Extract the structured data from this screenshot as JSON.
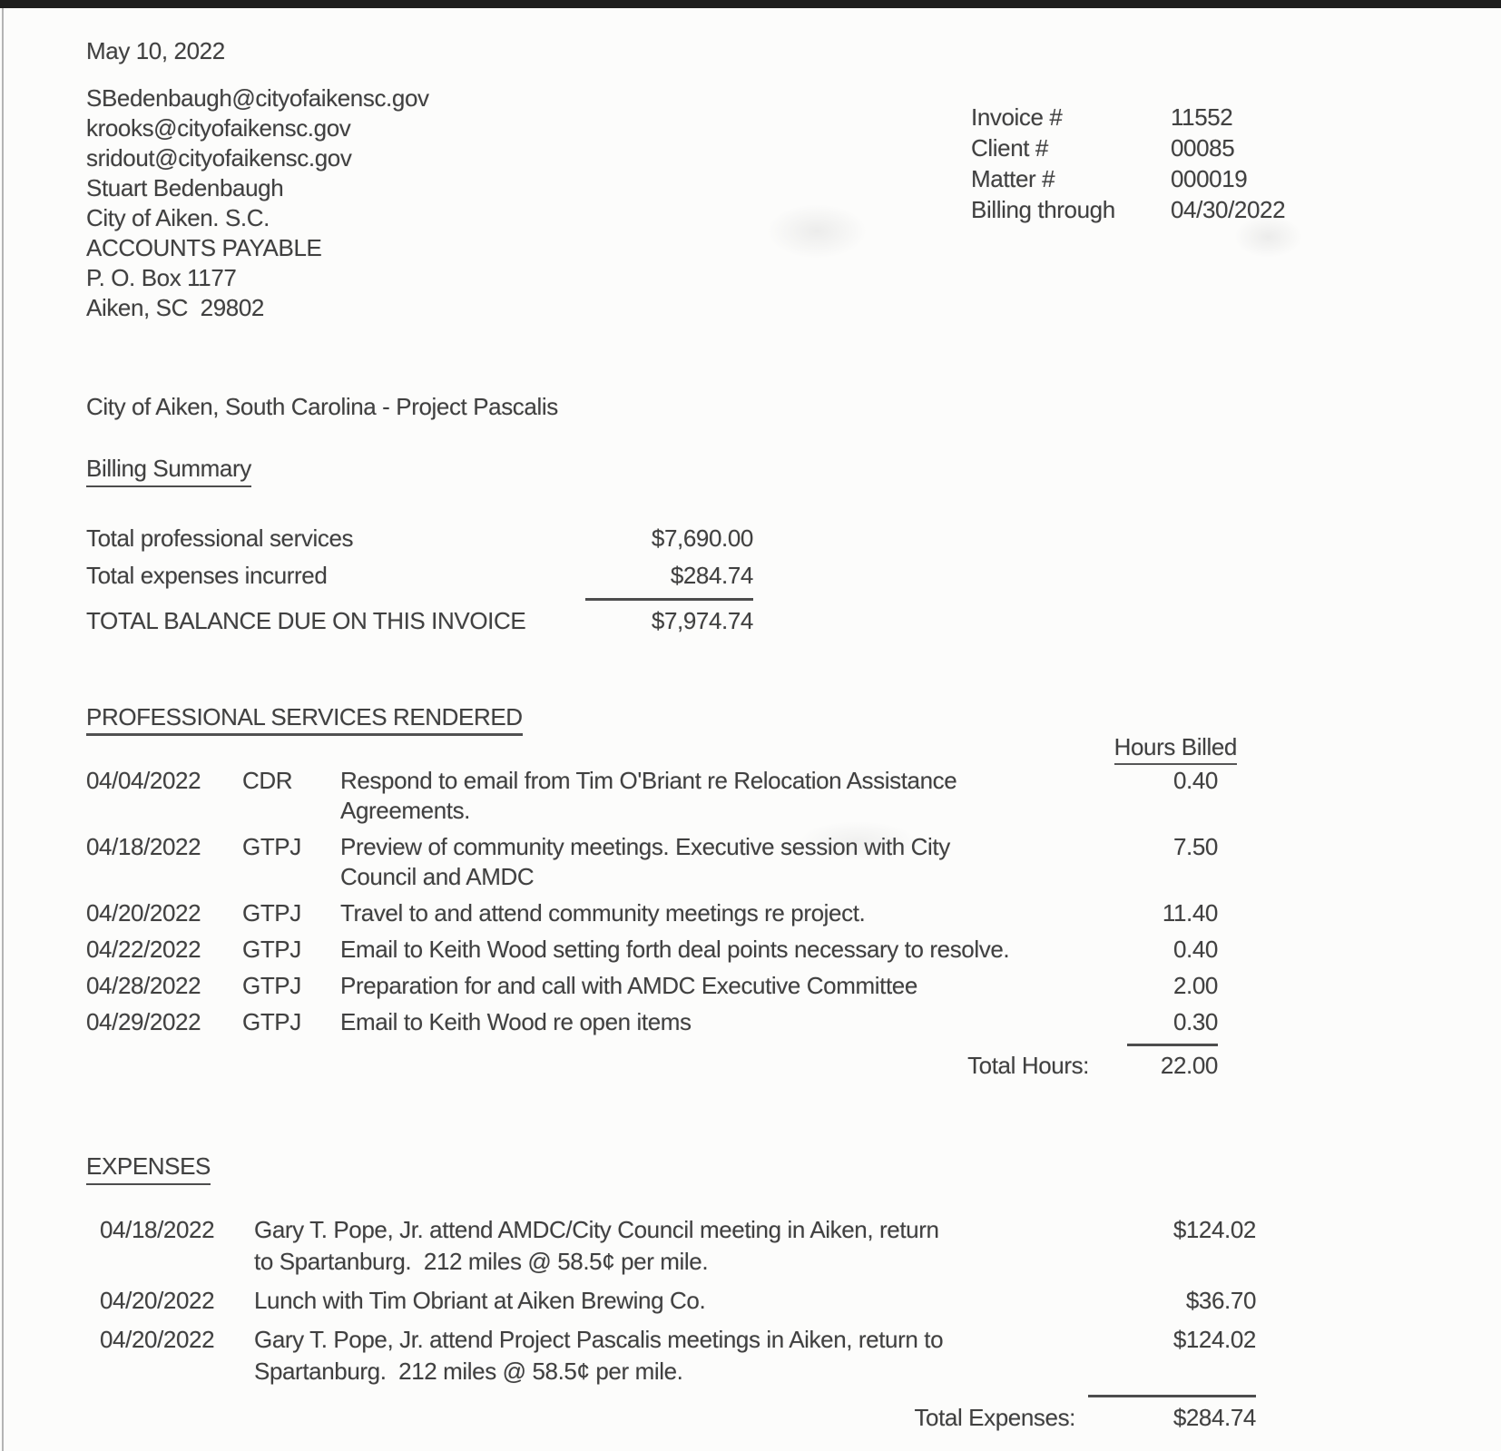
{
  "letter": {
    "date": "May 10, 2022"
  },
  "recipient": {
    "lines": [
      "SBedenbaugh@cityofaikensc.gov",
      "krooks@cityofaikensc.gov",
      "sridout@cityofaikensc.gov",
      "Stuart Bedenbaugh",
      "City of Aiken. S.C.",
      "ACCOUNTS PAYABLE",
      "P. O. Box 1177",
      "Aiken, SC  29802"
    ]
  },
  "invoice_info": {
    "rows": [
      {
        "label": "Invoice #",
        "value": "11552"
      },
      {
        "label": "Client #",
        "value": "00085"
      },
      {
        "label": "Matter #",
        "value": "000019"
      },
      {
        "label": "Billing through",
        "value": "04/30/2022"
      }
    ]
  },
  "matter_title": "City of Aiken, South Carolina - Project Pascalis",
  "billing_summary": {
    "heading": "Billing Summary",
    "rows": [
      {
        "label": "Total professional services",
        "value": "$7,690.00"
      },
      {
        "label": "Total expenses incurred",
        "value": "$284.74"
      }
    ],
    "total": {
      "label": "TOTAL BALANCE DUE ON THIS INVOICE",
      "value": "$7,974.74"
    }
  },
  "services": {
    "heading": "PROFESSIONAL SERVICES RENDERED",
    "hours_header": "Hours Billed",
    "rows": [
      {
        "date": "04/04/2022",
        "initials": "CDR",
        "description": "Respond to email from Tim O'Briant re Relocation Assistance\nAgreements.",
        "hours": "0.40"
      },
      {
        "date": "04/18/2022",
        "initials": "GTPJ",
        "description": "Preview of community meetings. Executive session with City\nCouncil and AMDC",
        "hours": "7.50"
      },
      {
        "date": "04/20/2022",
        "initials": "GTPJ",
        "description": "Travel to and attend community meetings re project.",
        "hours": "11.40"
      },
      {
        "date": "04/22/2022",
        "initials": "GTPJ",
        "description": "Email to Keith Wood setting forth deal points necessary to resolve.",
        "hours": "0.40"
      },
      {
        "date": "04/28/2022",
        "initials": "GTPJ",
        "description": "Preparation for and call with AMDC Executive Committee",
        "hours": "2.00"
      },
      {
        "date": "04/29/2022",
        "initials": "GTPJ",
        "description": "Email to Keith Wood re open items",
        "hours": "0.30"
      }
    ],
    "total_label": "Total Hours:",
    "total_value": "22.00"
  },
  "expenses": {
    "heading": "EXPENSES",
    "rows": [
      {
        "date": "04/18/2022",
        "description": "Gary T. Pope, Jr. attend AMDC/City Council meeting in Aiken, return\nto Spartanburg.  212 miles @ 58.5¢ per mile.",
        "amount": "$124.02"
      },
      {
        "date": "04/20/2022",
        "description": "Lunch with Tim Obriant at Aiken Brewing Co.",
        "amount": "$36.70"
      },
      {
        "date": "04/20/2022",
        "description": "Gary T. Pope, Jr. attend Project Pascalis meetings in Aiken, return to\nSpartanburg.  212 miles @ 58.5¢ per mile.",
        "amount": "$124.02"
      }
    ],
    "total_label": "Total Expenses:",
    "total_value": "$284.74"
  }
}
